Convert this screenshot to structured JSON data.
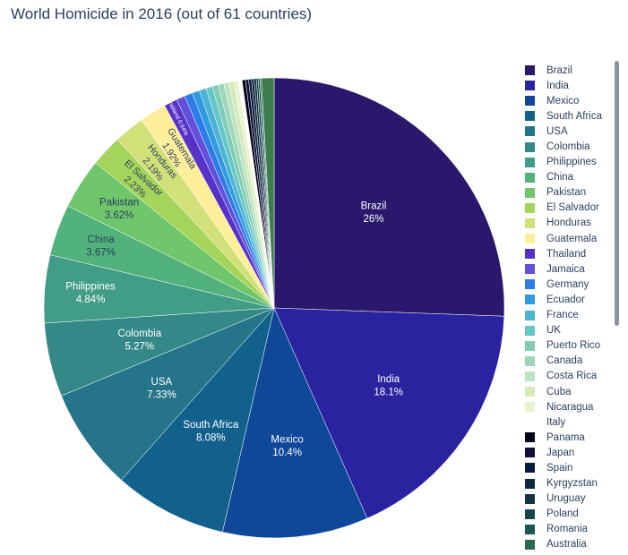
{
  "title": "World Homicide in 2016 (out of 61 countries)",
  "chart_data": {
    "type": "pie",
    "direction": "clockwise",
    "start": "12 o'clock",
    "legend_placement": "right",
    "slices": [
      {
        "label": "Brazil",
        "value": 26.0,
        "text": "26%",
        "color": "#29186b"
      },
      {
        "label": "India",
        "value": 18.1,
        "text": "18.1%",
        "color": "#2a23a0"
      },
      {
        "label": "Mexico",
        "value": 10.4,
        "text": "10.4%",
        "color": "#0f4799"
      },
      {
        "label": "South Africa",
        "value": 8.08,
        "text": "8.08%",
        "color": "#12618d"
      },
      {
        "label": "USA",
        "value": 7.33,
        "text": "7.33%",
        "color": "#26748a"
      },
      {
        "label": "Colombia",
        "value": 5.27,
        "text": "5.27%",
        "color": "#358888"
      },
      {
        "label": "Philippines",
        "value": 4.84,
        "text": "4.84%",
        "color": "#419d85"
      },
      {
        "label": "China",
        "value": 3.67,
        "text": "3.67%",
        "color": "#51b27c"
      },
      {
        "label": "Pakistan",
        "value": 3.62,
        "text": "3.62%",
        "color": "#6fc66b"
      },
      {
        "label": "El Salvador",
        "value": 2.23,
        "text": "2.23%",
        "color": "#a5d45b"
      },
      {
        "label": "Honduras",
        "value": 2.19,
        "text": "2.19%",
        "color": "#d2e07a"
      },
      {
        "label": "Guatemala",
        "value": 1.92,
        "text": "1.92%",
        "color": "#fdee99"
      },
      {
        "label": "Thailand",
        "value": 0.94,
        "text": "0.94%",
        "color": "#5732c8"
      },
      {
        "label": "Jamaica",
        "value": 0.62,
        "text": "",
        "color": "#6150da"
      },
      {
        "label": "Germany",
        "value": 0.57,
        "text": "",
        "color": "#2c7be6"
      },
      {
        "label": "Ecuador",
        "value": 0.53,
        "text": "",
        "color": "#2f9ce0"
      },
      {
        "label": "France",
        "value": 0.5,
        "text": "",
        "color": "#4eb3d3"
      },
      {
        "label": "UK",
        "value": 0.46,
        "text": "",
        "color": "#65c6c8"
      },
      {
        "label": "Puerto Rico",
        "value": 0.43,
        "text": "",
        "color": "#81cdb4"
      },
      {
        "label": "Canada",
        "value": 0.4,
        "text": "",
        "color": "#9fd6b7"
      },
      {
        "label": "Costa Rica",
        "value": 0.37,
        "text": "",
        "color": "#bce4c1"
      },
      {
        "label": "Cuba",
        "value": 0.34,
        "text": "",
        "color": "#d4ebb9"
      },
      {
        "label": "Nicaragua",
        "value": 0.31,
        "text": "",
        "color": "#e9f4cf"
      },
      {
        "label": "Italy",
        "value": 0.28,
        "text": "",
        "color": "#ffffff"
      },
      {
        "label": "Panama",
        "value": 0.25,
        "text": "",
        "color": "#030418"
      },
      {
        "label": "Japan",
        "value": 0.22,
        "text": "",
        "color": "#120f3c"
      },
      {
        "label": "Spain",
        "value": 0.2,
        "text": "",
        "color": "#0a1c3d"
      },
      {
        "label": "Kyrgyzstan",
        "value": 0.18,
        "text": "",
        "color": "#0b2a3e"
      },
      {
        "label": "Uruguay",
        "value": 0.16,
        "text": "",
        "color": "#113440"
      },
      {
        "label": "Poland",
        "value": 0.14,
        "text": "",
        "color": "#16444a"
      },
      {
        "label": "Romania",
        "value": 0.12,
        "text": "",
        "color": "#1e5652"
      },
      {
        "label": "Australia",
        "value": 0.1,
        "text": "",
        "color": "#2b6a4e"
      },
      {
        "label": "",
        "value": 0.9,
        "text": "",
        "color": "#3c7d4d"
      }
    ]
  }
}
